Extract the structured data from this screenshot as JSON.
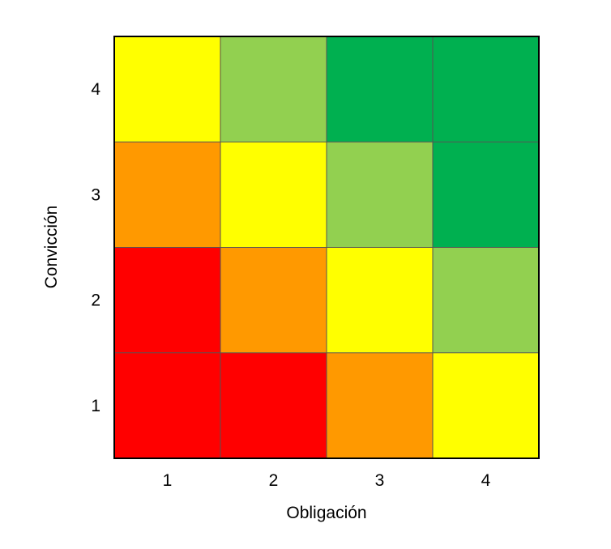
{
  "chart_data": {
    "type": "heatmap",
    "title": "",
    "xlabel": "Obligación",
    "ylabel": "Convicción",
    "x_categories": [
      "1",
      "2",
      "3",
      "4"
    ],
    "y_categories": [
      "1",
      "2",
      "3",
      "4"
    ],
    "grid": true,
    "legend": "none",
    "values": [
      [
        1,
        1,
        2,
        3
      ],
      [
        1,
        2,
        3,
        4
      ],
      [
        2,
        3,
        4,
        5
      ],
      [
        3,
        4,
        5,
        5
      ]
    ],
    "color_scale": {
      "1": "#ff0000",
      "2": "#ff9900",
      "3": "#ffff00",
      "4": "#92d050",
      "5": "#00b050"
    }
  }
}
